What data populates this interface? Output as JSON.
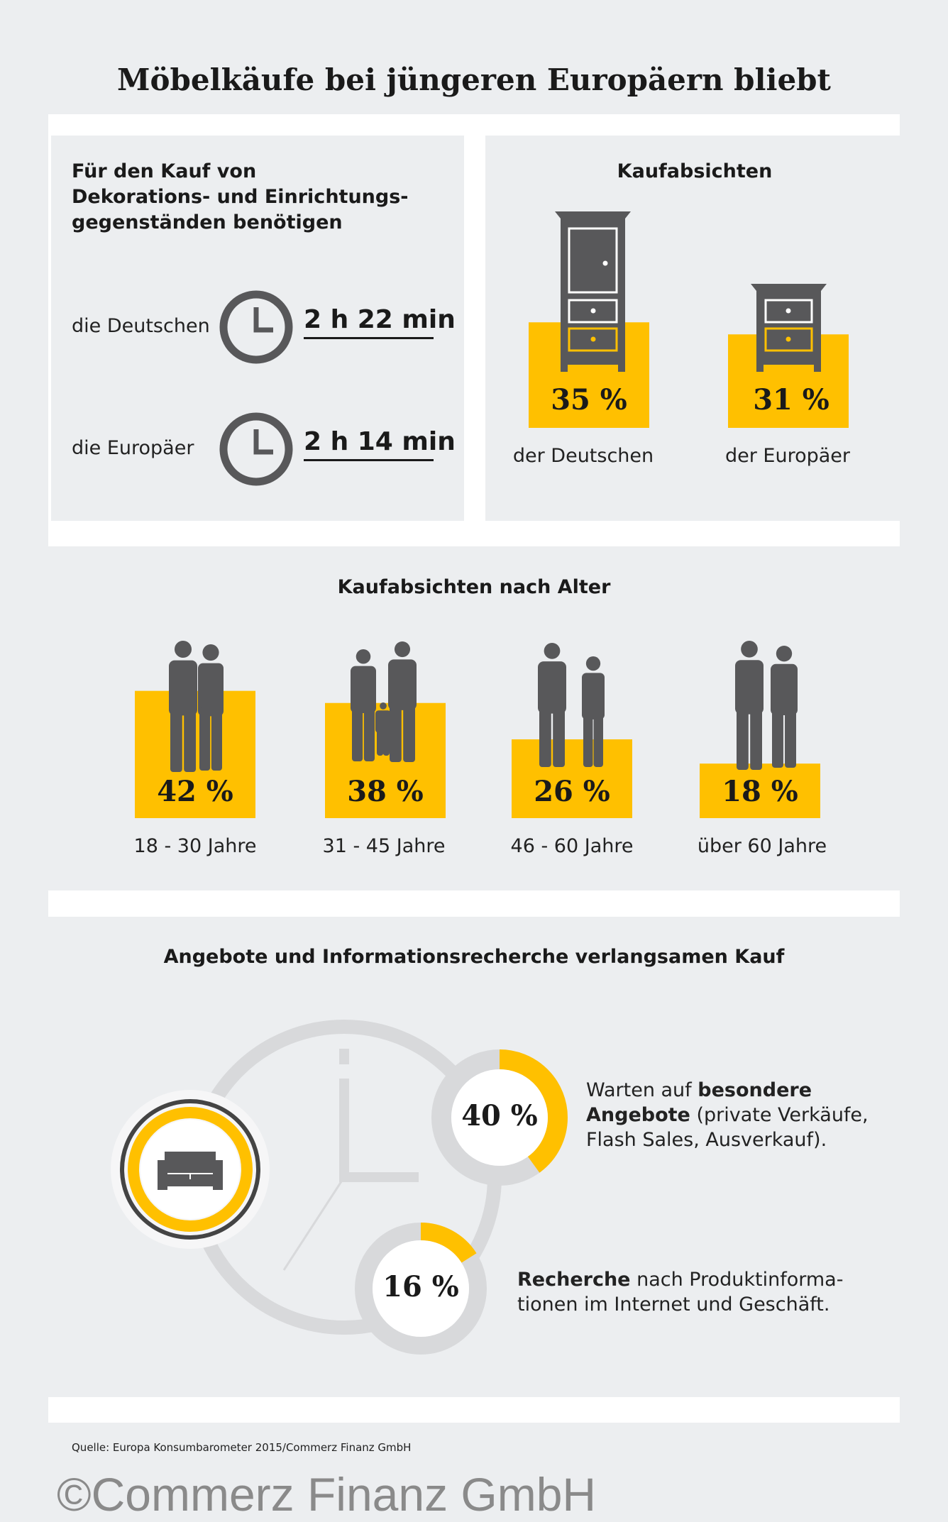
{
  "title": "Möbelkäufe bei jüngeren Europäern bliebt",
  "colors": {
    "accent": "#ffc000",
    "icon_gray": "#58585a",
    "panel_bg": "#eceef0",
    "ring_gray": "#d8d9db"
  },
  "time_panel": {
    "heading": [
      "Für den Kauf von",
      "Dekorations- und Einrichtungs-",
      "gegenständen benötigen"
    ],
    "rows": [
      {
        "label": "die Deutschen",
        "icon": "clock-icon",
        "value": "2 h 22 min"
      },
      {
        "label": "die Europäer",
        "icon": "clock-icon",
        "value": "2 h 14 min"
      }
    ]
  },
  "intent_panel": {
    "heading": "Kaufabsichten",
    "items": [
      {
        "value": 35,
        "display": "35 %",
        "label": "der Deutschen",
        "icon": "wardrobe-icon"
      },
      {
        "value": 31,
        "display": "31 %",
        "label": "der Europäer",
        "icon": "nightstand-icon"
      }
    ]
  },
  "age_panel": {
    "heading": "Kaufabsichten nach Alter",
    "items": [
      {
        "value": 42,
        "display": "42 %",
        "label": "18 - 30 Jahre",
        "icon": "young-couple-icon"
      },
      {
        "value": 38,
        "display": "38 %",
        "label": "31 - 45 Jahre",
        "icon": "family-icon"
      },
      {
        "value": 26,
        "display": "26 %",
        "label": "46 - 60 Jahre",
        "icon": "middle-aged-couple-icon"
      },
      {
        "value": 18,
        "display": "18 %",
        "label": "über 60 Jahre",
        "icon": "senior-couple-icon"
      }
    ]
  },
  "delay_panel": {
    "heading": "Angebote und Informationsrecherche verlangsamen Kauf",
    "items": [
      {
        "value": 40,
        "display": "40 %",
        "text_bold_1": "besondere",
        "text_pre": "Warten auf ",
        "text_bold_2": "Angebote",
        "text_rest_1": " (private Verkäufe,",
        "text_rest_2": "Flash Sales, Ausverkauf)."
      },
      {
        "value": 16,
        "display": "16 %",
        "text_bold": "Recherche",
        "text_rest_1": " nach Produktinforma-",
        "text_rest_2": "tionen im Internet und Geschäft."
      }
    ]
  },
  "chart_data": [
    {
      "type": "bar",
      "title": "Kaufabsichten",
      "categories": [
        "der Deutschen",
        "der Europäer"
      ],
      "values": [
        35,
        31
      ],
      "unit": "%"
    },
    {
      "type": "bar",
      "title": "Kaufabsichten nach Alter",
      "categories": [
        "18 - 30 Jahre",
        "31 - 45 Jahre",
        "46 - 60 Jahre",
        "über 60 Jahre"
      ],
      "values": [
        42,
        38,
        26,
        18
      ],
      "unit": "%"
    },
    {
      "type": "pie",
      "title": "Angebote und Informationsrecherche verlangsamen Kauf",
      "categories": [
        "Warten auf besondere Angebote",
        "Recherche nach Produktinformationen"
      ],
      "values": [
        40,
        16
      ],
      "unit": "%"
    }
  ],
  "source": "Quelle: Europa Konsumbarometer 2015/Commerz Finanz GmbH",
  "watermark": "©Commerz Finanz GmbH"
}
